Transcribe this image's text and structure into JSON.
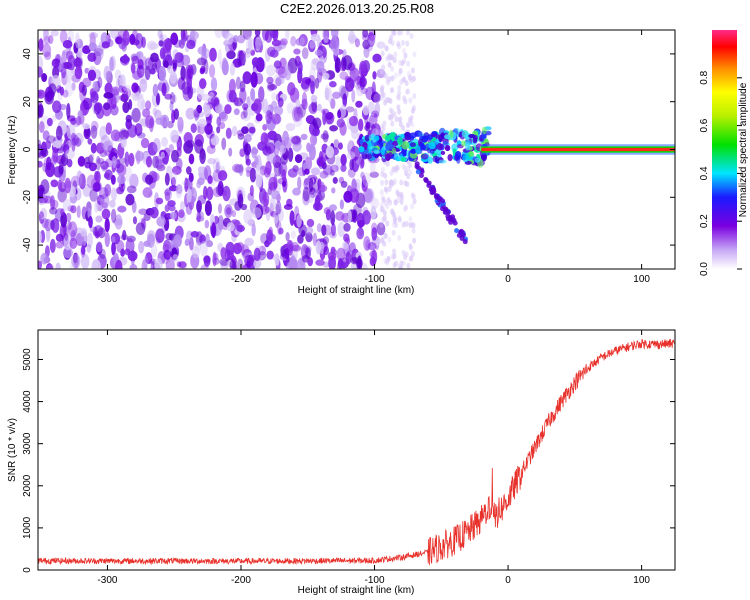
{
  "title": "C2E2.2026.013.20.25.R08",
  "colors": {
    "snr_line": "#e8312b",
    "plot_bg": "#ffffff",
    "frame": "#000000"
  },
  "chart_data": [
    {
      "type": "heatmap",
      "xlabel": "Height of straight line (km)",
      "ylabel": "Frequency (Hz)",
      "xlim": [
        -352,
        125
      ],
      "ylim": [
        -50,
        50
      ],
      "x_ticks": [
        -300,
        -200,
        -100,
        0,
        100
      ],
      "y_ticks": [
        -40,
        -20,
        0,
        20,
        40
      ],
      "grid": false,
      "colorbar": {
        "label": "Normalized spectral amplitude",
        "range": [
          0,
          1
        ],
        "ticks": [
          "0.0",
          "0.2",
          "0.4",
          "0.6",
          "0.8"
        ]
      },
      "description_regions": [
        {
          "x_range": [
            -352,
            -95
          ],
          "y_range": [
            -50,
            50
          ],
          "level": [
            0.0,
            0.12
          ]
        },
        {
          "x_range": [
            -95,
            -20
          ],
          "y_range": [
            -40,
            12
          ],
          "level": [
            0.15,
            0.45
          ]
        },
        {
          "x_range": [
            -20,
            125
          ],
          "y_range": [
            -1,
            1
          ],
          "level": [
            0.9,
            1.0
          ]
        }
      ]
    },
    {
      "type": "line",
      "xlabel": "Height of straight line (km)",
      "ylabel": "SNR (10 * v/v)",
      "xlim": [
        -352,
        125
      ],
      "ylim": [
        0,
        5700
      ],
      "x_ticks": [
        -300,
        -200,
        -100,
        0,
        100
      ],
      "y_ticks": [
        0,
        1000,
        2000,
        3000,
        4000,
        5000
      ],
      "grid": false,
      "series": [
        {
          "x": [
            -352,
            -300,
            -250,
            -200,
            -150,
            -100,
            -80,
            -60,
            -50,
            -40,
            -30,
            -20,
            -15,
            -10,
            -5,
            0,
            10,
            20,
            30,
            40,
            50,
            60,
            70,
            80,
            90,
            100,
            110,
            125
          ],
          "y": [
            220,
            215,
            215,
            210,
            215,
            225,
            300,
            420,
            550,
            700,
            900,
            1200,
            1500,
            1250,
            1450,
            1700,
            2300,
            2900,
            3500,
            4000,
            4450,
            4800,
            5050,
            5200,
            5300,
            5380,
            5360,
            5380
          ]
        }
      ]
    }
  ]
}
